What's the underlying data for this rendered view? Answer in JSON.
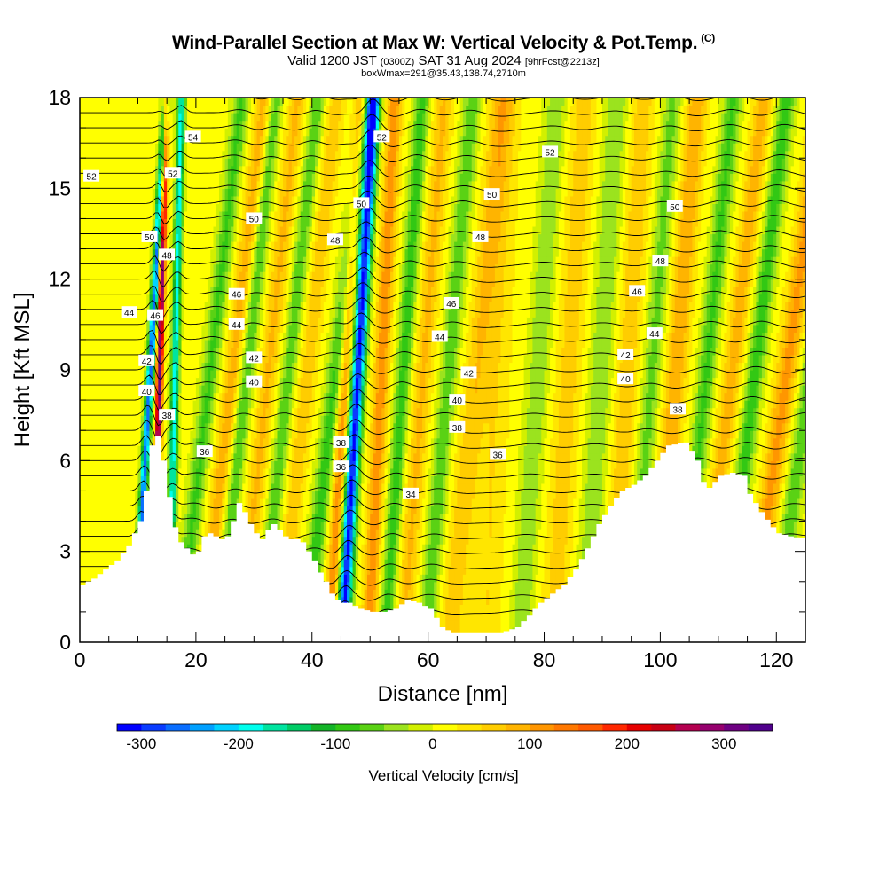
{
  "header": {
    "title": "Wind-Parallel Section at Max W: Vertical Velocity & Pot.Temp.",
    "copyright": "(C)",
    "valid_main": "Valid 1200 JST",
    "valid_utc": "(0300Z)",
    "valid_date": "SAT 31 Aug 2024",
    "forecast": "[9hrFcst@2213z]",
    "box_info": "boxWmax=291@35.43,138.74,2710m"
  },
  "chart_data": {
    "type": "heatmap",
    "xlabel": "Distance [nm]",
    "ylabel": "Height [Kft MSL]",
    "xlim": [
      0,
      125
    ],
    "ylim": [
      0,
      18
    ],
    "x_ticks": [
      "0",
      "20",
      "40",
      "60",
      "80",
      "100",
      "120"
    ],
    "y_ticks": [
      "0",
      "3",
      "6",
      "9",
      "12",
      "15",
      "18"
    ],
    "colorbar": {
      "label": "Vertical Velocity [cm/s]",
      "ticks": [
        "-300",
        "-200",
        "-100",
        "0",
        "100",
        "200",
        "300"
      ],
      "range": [
        -325,
        350
      ],
      "step": 25,
      "colors": [
        "#0000ff",
        "#0a3cff",
        "#0a6eff",
        "#00a0ff",
        "#00d2ff",
        "#00ffee",
        "#00e4a0",
        "#00cc66",
        "#14b428",
        "#32c814",
        "#5ad214",
        "#9be31e",
        "#d2f000",
        "#ffff00",
        "#ffe600",
        "#ffcd00",
        "#ffb400",
        "#ff9600",
        "#ff7800",
        "#ff5a00",
        "#ff2800",
        "#e60000",
        "#c80014",
        "#b40050",
        "#96006e",
        "#6e0082",
        "#50008c"
      ]
    },
    "terrain_kft": [
      [
        0,
        1.9
      ],
      [
        2,
        2.1
      ],
      [
        4,
        2.4
      ],
      [
        6,
        2.7
      ],
      [
        8,
        3.2
      ],
      [
        10,
        4.0
      ],
      [
        11,
        5.0
      ],
      [
        12,
        6.5
      ],
      [
        13,
        6.8
      ],
      [
        14,
        6.0
      ],
      [
        15,
        4.8
      ],
      [
        16,
        3.8
      ],
      [
        17,
        3.3
      ],
      [
        18,
        3.1
      ],
      [
        19,
        2.9
      ],
      [
        20,
        3.0
      ],
      [
        21,
        3.5
      ],
      [
        22,
        3.6
      ],
      [
        23,
        3.5
      ],
      [
        24,
        3.4
      ],
      [
        25,
        3.5
      ],
      [
        26,
        4.0
      ],
      [
        27,
        4.6
      ],
      [
        28,
        4.3
      ],
      [
        29,
        3.9
      ],
      [
        30,
        3.6
      ],
      [
        31,
        3.4
      ],
      [
        32,
        3.7
      ],
      [
        33,
        3.9
      ],
      [
        34,
        3.7
      ],
      [
        35,
        3.5
      ],
      [
        36,
        3.4
      ],
      [
        37,
        3.4
      ],
      [
        38,
        3.3
      ],
      [
        39,
        3.0
      ],
      [
        40,
        2.7
      ],
      [
        41,
        2.3
      ],
      [
        42,
        2.0
      ],
      [
        43,
        1.6
      ],
      [
        44,
        1.4
      ],
      [
        45,
        1.3
      ],
      [
        46,
        1.3
      ],
      [
        47,
        1.2
      ],
      [
        48,
        1.1
      ],
      [
        50,
        1.0
      ],
      [
        52,
        1.0
      ],
      [
        54,
        1.1
      ],
      [
        56,
        1.4
      ],
      [
        58,
        1.3
      ],
      [
        60,
        1.1
      ],
      [
        62,
        0.5
      ],
      [
        64,
        0.3
      ],
      [
        68,
        0.3
      ],
      [
        72,
        0.3
      ],
      [
        75,
        0.5
      ],
      [
        77,
        0.9
      ],
      [
        79,
        1.3
      ],
      [
        81,
        1.6
      ],
      [
        83,
        1.9
      ],
      [
        85,
        2.4
      ],
      [
        87,
        3.1
      ],
      [
        89,
        3.9
      ],
      [
        91,
        4.5
      ],
      [
        93,
        5.0
      ],
      [
        95,
        5.2
      ],
      [
        97,
        5.5
      ],
      [
        99,
        6.0
      ],
      [
        101,
        6.5
      ],
      [
        104,
        6.6
      ],
      [
        106,
        6.0
      ],
      [
        107,
        5.3
      ],
      [
        108,
        5.1
      ],
      [
        110,
        5.5
      ],
      [
        112,
        5.6
      ],
      [
        114,
        5.5
      ],
      [
        115,
        4.9
      ],
      [
        117,
        4.3
      ],
      [
        119,
        3.8
      ],
      [
        120,
        3.6
      ],
      [
        122,
        3.5
      ],
      [
        125,
        3.4
      ]
    ],
    "theta_levels_K": [
      34,
      36,
      38,
      40,
      42,
      44,
      46,
      48,
      50,
      52,
      54
    ],
    "contour_labels": [
      {
        "text": "52",
        "x": 2,
        "y": 15.4
      },
      {
        "text": "54",
        "x": 19.5,
        "y": 16.7
      },
      {
        "text": "52",
        "x": 16,
        "y": 15.5
      },
      {
        "text": "50",
        "x": 12,
        "y": 13.4
      },
      {
        "text": "48",
        "x": 15,
        "y": 12.8
      },
      {
        "text": "44",
        "x": 8.5,
        "y": 10.9
      },
      {
        "text": "46",
        "x": 13,
        "y": 10.8
      },
      {
        "text": "42",
        "x": 11.5,
        "y": 9.3
      },
      {
        "text": "40",
        "x": 11.5,
        "y": 8.3
      },
      {
        "text": "38",
        "x": 15,
        "y": 7.5
      },
      {
        "text": "36",
        "x": 21.5,
        "y": 6.3
      },
      {
        "text": "50",
        "x": 30,
        "y": 14.0
      },
      {
        "text": "46",
        "x": 27,
        "y": 11.5
      },
      {
        "text": "44",
        "x": 27,
        "y": 10.5
      },
      {
        "text": "42",
        "x": 30,
        "y": 9.4
      },
      {
        "text": "40",
        "x": 30,
        "y": 8.6
      },
      {
        "text": "48",
        "x": 44,
        "y": 13.3
      },
      {
        "text": "38",
        "x": 45,
        "y": 6.6
      },
      {
        "text": "36",
        "x": 45,
        "y": 5.8
      },
      {
        "text": "52",
        "x": 52,
        "y": 16.7
      },
      {
        "text": "50",
        "x": 48.5,
        "y": 14.5
      },
      {
        "text": "46",
        "x": 64,
        "y": 11.2
      },
      {
        "text": "44",
        "x": 62,
        "y": 10.1
      },
      {
        "text": "42",
        "x": 67,
        "y": 8.9
      },
      {
        "text": "40",
        "x": 65,
        "y": 8.0
      },
      {
        "text": "38",
        "x": 65,
        "y": 7.1
      },
      {
        "text": "36",
        "x": 72,
        "y": 6.2
      },
      {
        "text": "34",
        "x": 57,
        "y": 4.9
      },
      {
        "text": "48",
        "x": 69,
        "y": 13.4
      },
      {
        "text": "50",
        "x": 71,
        "y": 14.8
      },
      {
        "text": "52",
        "x": 81,
        "y": 16.2
      },
      {
        "text": "50",
        "x": 102.5,
        "y": 14.4
      },
      {
        "text": "48",
        "x": 100,
        "y": 12.6
      },
      {
        "text": "46",
        "x": 96,
        "y": 11.6
      },
      {
        "text": "44",
        "x": 99,
        "y": 10.2
      },
      {
        "text": "42",
        "x": 94,
        "y": 9.5
      },
      {
        "text": "40",
        "x": 94,
        "y": 8.7
      },
      {
        "text": "38",
        "x": 103,
        "y": 7.7
      }
    ]
  }
}
